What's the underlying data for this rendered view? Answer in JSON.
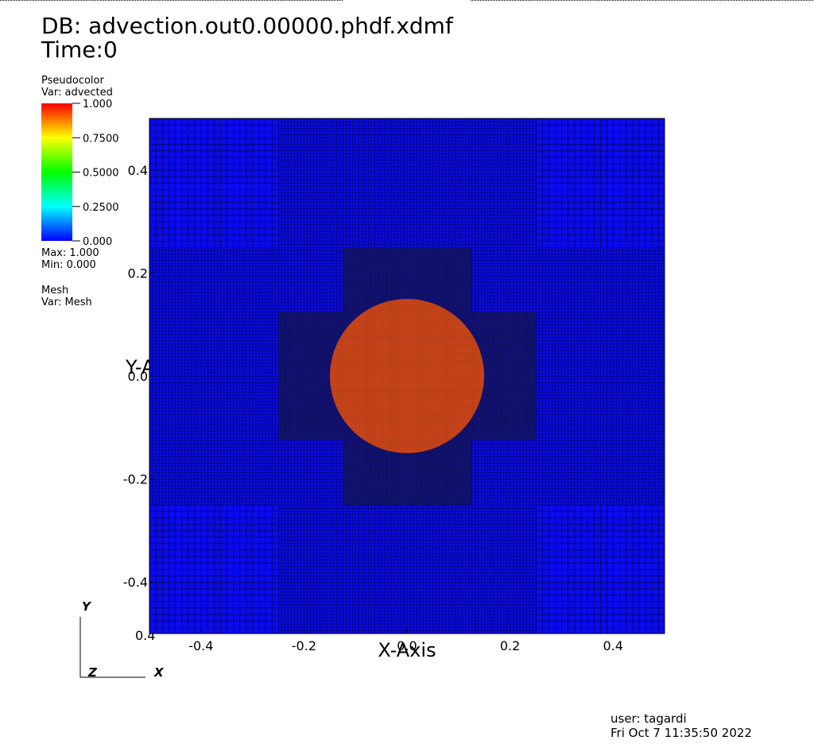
{
  "header": {
    "db": "DB: advection.out0.00000.phdf.xdmf",
    "time": "Time:0"
  },
  "legend": {
    "plot_type": "Pseudocolor",
    "variable": "Var: advected",
    "ticks": [
      {
        "value": 1,
        "label": "1.000"
      },
      {
        "value": 0.75,
        "label": "0.7500"
      },
      {
        "value": 0.5,
        "label": "0.5000"
      },
      {
        "value": 0.25,
        "label": "0.2500"
      },
      {
        "value": 0,
        "label": "0.000"
      }
    ],
    "max": "Max:  1.000",
    "min": "Min:  0.000"
  },
  "mesh_legend": {
    "plot_type": "Mesh",
    "variable": "Var: Mesh"
  },
  "plot": {
    "xlim": [
      -0.5,
      0.5
    ],
    "ylim": [
      -0.5,
      0.5
    ],
    "xticks": [
      -0.4,
      -0.2,
      {
        "value": 0,
        "label": "0.0"
      },
      0.2,
      0.4
    ],
    "yticks": [
      -0.4,
      -0.2,
      {
        "value": 0,
        "label": "0.0"
      },
      0.2,
      0.4
    ],
    "x_label": "X-Axis",
    "y_label": "Y-Axis",
    "corner_label": "0.4"
  },
  "triad": {
    "y": "Y",
    "z": "Z",
    "x": "X"
  },
  "footer": {
    "user": "user: tagardi",
    "date": "Fri Oct  7 11:35:50 2022"
  }
}
